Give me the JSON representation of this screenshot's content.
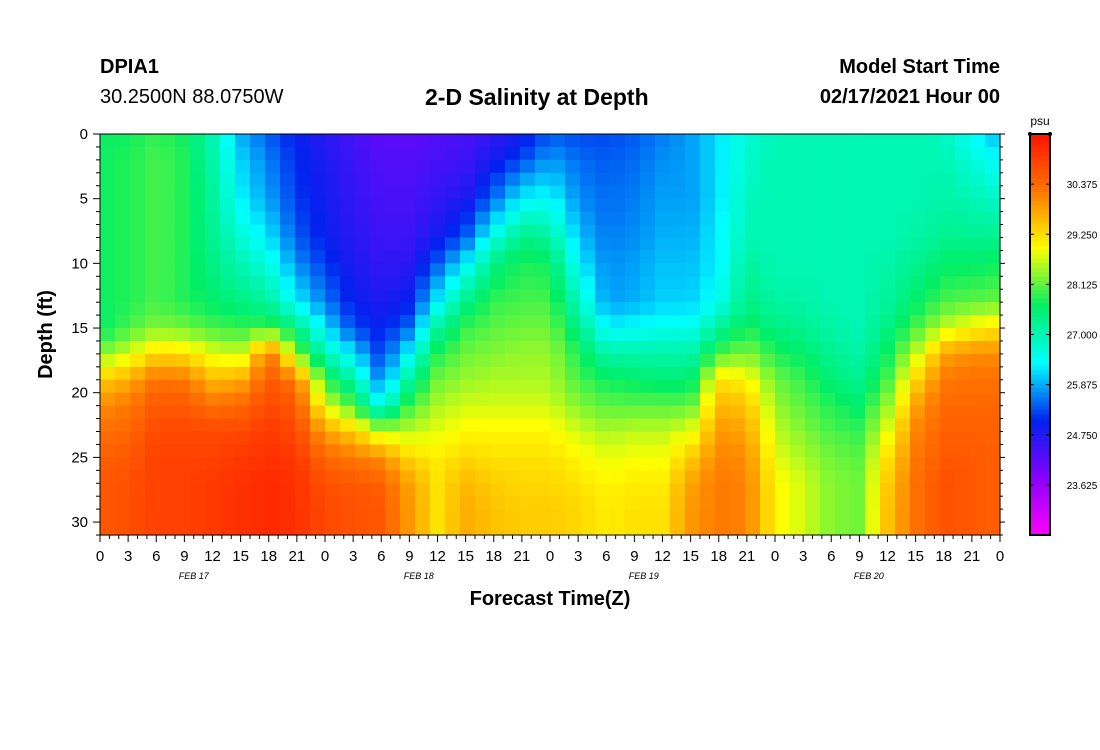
{
  "header": {
    "station": "DPIA1",
    "coords": "30.2500N 88.0750W",
    "title": "2-D Salinity at Depth",
    "model_start_label": "Model Start Time",
    "model_start_value": "02/17/2021 Hour 00"
  },
  "chart_data": {
    "type": "heatmap",
    "title": "2-D Salinity at Depth",
    "xlabel": "Forecast Time(Z)",
    "ylabel": "Depth (ft)",
    "x_hours": [
      0,
      3,
      6,
      9,
      12,
      15,
      18,
      21,
      24,
      27,
      30,
      33,
      36,
      39,
      42,
      45,
      48,
      51,
      54,
      57,
      60,
      63,
      66,
      69,
      72,
      75,
      78,
      81,
      84,
      87,
      90,
      93,
      96
    ],
    "x_tick_labels": [
      "0",
      "3",
      "6",
      "9",
      "12",
      "15",
      "18",
      "21",
      "0",
      "3",
      "6",
      "9",
      "12",
      "15",
      "18",
      "21",
      "0",
      "3",
      "6",
      "9",
      "12",
      "15",
      "18",
      "21",
      "0",
      "3",
      "6",
      "9",
      "12",
      "15",
      "18",
      "21",
      "0"
    ],
    "date_labels": [
      {
        "label": "FEB 17",
        "hour": 10
      },
      {
        "label": "FEB 18",
        "hour": 34
      },
      {
        "label": "FEB 19",
        "hour": 58
      },
      {
        "label": "FEB 20",
        "hour": 82
      }
    ],
    "xlim": [
      0,
      96
    ],
    "ylim": [
      0,
      31
    ],
    "y_inverted": true,
    "y_tick_labels": [
      "0",
      "5",
      "10",
      "15",
      "20",
      "25",
      "30"
    ],
    "colorbar": {
      "unit": "psu",
      "range": [
        22.5,
        31.5
      ],
      "tick_labels": [
        "30.375",
        "29.250",
        "28.125",
        "27.000",
        "25.875",
        "24.750",
        "23.625"
      ],
      "colors": [
        "#ff00ff",
        "#8800ff",
        "#0022ee",
        "#00ffff",
        "#00ee66",
        "#ffff00",
        "#ff7700",
        "#ff1100"
      ]
    },
    "depths_ft": [
      0,
      2,
      5,
      8,
      10,
      13,
      15,
      17,
      19,
      21,
      23,
      25,
      27,
      29,
      31
    ],
    "profiles": [
      {
        "hour": 0,
        "values": [
          27.7,
          27.7,
          27.7,
          27.7,
          27.7,
          27.7,
          27.6,
          28.3,
          29.4,
          30.0,
          30.3,
          30.5,
          30.6,
          30.6,
          30.6
        ]
      },
      {
        "hour": 3,
        "values": [
          27.7,
          27.8,
          27.8,
          27.8,
          27.8,
          27.8,
          28.0,
          28.7,
          29.7,
          30.2,
          30.4,
          30.6,
          30.7,
          30.7,
          30.7
        ]
      },
      {
        "hour": 6,
        "values": [
          27.9,
          28.0,
          28.0,
          28.0,
          28.0,
          28.0,
          28.3,
          29.3,
          30.3,
          30.6,
          30.8,
          30.9,
          30.9,
          30.9,
          30.9
        ]
      },
      {
        "hour": 9,
        "values": [
          27.7,
          27.8,
          27.8,
          27.8,
          27.8,
          27.8,
          28.2,
          29.2,
          30.2,
          30.6,
          30.8,
          30.9,
          30.9,
          30.9,
          30.9
        ]
      },
      {
        "hour": 12,
        "values": [
          27.0,
          27.1,
          27.2,
          27.3,
          27.4,
          27.6,
          28.0,
          28.8,
          29.6,
          30.3,
          30.8,
          30.9,
          31.0,
          31.0,
          31.0
        ]
      },
      {
        "hour": 15,
        "values": [
          25.9,
          26.1,
          26.3,
          26.7,
          27.0,
          27.4,
          27.9,
          28.6,
          29.7,
          30.4,
          30.8,
          31.0,
          31.1,
          31.1,
          31.1
        ]
      },
      {
        "hour": 18,
        "values": [
          25.4,
          25.6,
          25.8,
          26.2,
          26.6,
          27.2,
          28.0,
          30.3,
          30.6,
          30.8,
          31.0,
          31.1,
          31.2,
          31.2,
          31.2
        ]
      },
      {
        "hour": 21,
        "values": [
          25.0,
          25.1,
          25.2,
          25.4,
          25.7,
          26.3,
          27.4,
          28.3,
          30.2,
          30.6,
          30.8,
          31.0,
          31.1,
          31.1,
          31.1
        ]
      },
      {
        "hour": 24,
        "values": [
          24.7,
          24.8,
          24.9,
          25.0,
          25.2,
          25.6,
          26.2,
          27.0,
          27.9,
          28.8,
          29.8,
          30.4,
          30.7,
          30.8,
          30.8
        ]
      },
      {
        "hour": 27,
        "values": [
          24.4,
          24.5,
          24.6,
          24.7,
          24.8,
          25.0,
          25.3,
          26.2,
          27.1,
          28.0,
          29.4,
          30.2,
          30.6,
          30.7,
          30.7
        ]
      },
      {
        "hour": 30,
        "values": [
          24.2,
          24.3,
          24.4,
          24.5,
          24.6,
          24.8,
          25.0,
          25.2,
          25.6,
          26.5,
          28.6,
          30.0,
          30.5,
          30.6,
          30.6
        ]
      },
      {
        "hour": 33,
        "values": [
          24.2,
          24.3,
          24.4,
          24.5,
          24.7,
          25.0,
          25.5,
          26.4,
          27.2,
          28.0,
          28.6,
          29.3,
          29.8,
          29.9,
          29.9
        ]
      },
      {
        "hour": 36,
        "values": [
          24.3,
          24.4,
          24.6,
          24.9,
          25.4,
          26.3,
          27.2,
          27.8,
          28.2,
          28.5,
          28.8,
          29.1,
          29.2,
          29.2,
          29.2
        ]
      },
      {
        "hour": 39,
        "values": [
          24.4,
          24.5,
          24.8,
          25.4,
          26.3,
          27.4,
          27.9,
          28.2,
          28.4,
          28.7,
          29.0,
          29.3,
          29.6,
          29.7,
          29.7
        ]
      },
      {
        "hour": 42,
        "values": [
          24.6,
          24.9,
          25.5,
          26.6,
          27.4,
          27.9,
          28.1,
          28.3,
          28.5,
          28.7,
          29.0,
          29.2,
          29.4,
          29.5,
          29.5
        ]
      },
      {
        "hour": 45,
        "values": [
          24.9,
          25.3,
          26.3,
          27.4,
          27.8,
          28.0,
          28.2,
          28.4,
          28.5,
          28.7,
          29.0,
          29.2,
          29.3,
          29.4,
          29.4
        ]
      },
      {
        "hour": 48,
        "values": [
          25.4,
          25.8,
          26.4,
          27.2,
          27.7,
          28.0,
          28.2,
          28.4,
          28.5,
          28.7,
          29.0,
          29.2,
          29.3,
          29.4,
          29.4
        ]
      },
      {
        "hour": 51,
        "values": [
          25.3,
          25.5,
          25.7,
          26.0,
          26.3,
          26.9,
          27.4,
          27.8,
          28.0,
          28.3,
          28.7,
          29.0,
          29.2,
          29.3,
          29.3
        ]
      },
      {
        "hour": 54,
        "values": [
          25.3,
          25.4,
          25.5,
          25.6,
          25.7,
          25.8,
          26.3,
          27.1,
          27.7,
          28.1,
          28.5,
          28.8,
          29.0,
          29.1,
          29.1
        ]
      },
      {
        "hour": 57,
        "values": [
          25.4,
          25.5,
          25.6,
          25.7,
          25.8,
          25.9,
          26.4,
          27.1,
          27.6,
          28.1,
          28.6,
          28.9,
          29.1,
          29.2,
          29.2
        ]
      },
      {
        "hour": 60,
        "values": [
          25.6,
          25.7,
          25.8,
          25.9,
          26.0,
          26.1,
          26.5,
          27.1,
          27.5,
          28.1,
          28.6,
          28.9,
          29.1,
          29.2,
          29.2
        ]
      },
      {
        "hour": 63,
        "values": [
          25.8,
          25.8,
          25.8,
          25.9,
          26.0,
          26.1,
          26.5,
          27.1,
          27.5,
          28.1,
          28.8,
          29.4,
          29.8,
          29.9,
          29.9
        ]
      },
      {
        "hour": 66,
        "values": [
          26.2,
          26.2,
          26.2,
          26.3,
          26.3,
          26.5,
          27.2,
          28.0,
          29.2,
          29.6,
          29.9,
          30.1,
          30.2,
          30.2,
          30.2
        ]
      },
      {
        "hour": 69,
        "values": [
          26.7,
          26.8,
          26.9,
          27.0,
          27.2,
          27.4,
          27.8,
          28.3,
          29.0,
          29.5,
          29.8,
          30.0,
          30.1,
          30.1,
          30.1
        ]
      },
      {
        "hour": 72,
        "values": [
          27.0,
          27.0,
          27.0,
          27.0,
          27.0,
          27.1,
          27.4,
          27.8,
          28.2,
          28.4,
          28.6,
          28.8,
          29.0,
          29.0,
          29.0
        ]
      },
      {
        "hour": 75,
        "values": [
          27.0,
          27.0,
          27.0,
          27.0,
          27.0,
          27.1,
          27.3,
          27.6,
          27.9,
          28.1,
          28.3,
          28.5,
          28.7,
          28.7,
          28.7
        ]
      },
      {
        "hour": 78,
        "values": [
          27.0,
          27.0,
          27.0,
          27.0,
          27.0,
          27.0,
          27.1,
          27.3,
          27.5,
          27.8,
          28.0,
          28.2,
          28.3,
          28.3,
          28.3
        ]
      },
      {
        "hour": 81,
        "values": [
          27.0,
          27.0,
          27.0,
          27.0,
          27.0,
          27.0,
          27.0,
          27.1,
          27.3,
          27.6,
          27.9,
          28.1,
          28.2,
          28.2,
          28.2
        ]
      },
      {
        "hour": 84,
        "values": [
          27.0,
          27.0,
          27.0,
          27.0,
          27.1,
          27.2,
          27.4,
          27.7,
          28.0,
          28.4,
          28.8,
          29.2,
          29.4,
          29.5,
          29.5
        ]
      },
      {
        "hour": 87,
        "values": [
          27.0,
          27.0,
          27.0,
          27.1,
          27.3,
          27.6,
          28.0,
          28.6,
          29.3,
          29.8,
          30.1,
          30.2,
          30.3,
          30.3,
          30.3
        ]
      },
      {
        "hour": 90,
        "values": [
          26.9,
          27.0,
          27.1,
          27.3,
          27.6,
          28.0,
          28.6,
          29.8,
          30.2,
          30.4,
          30.5,
          30.6,
          30.7,
          30.7,
          30.7
        ]
      },
      {
        "hour": 93,
        "values": [
          26.4,
          26.7,
          27.0,
          27.3,
          27.6,
          28.1,
          29.0,
          30.0,
          30.3,
          30.4,
          30.5,
          30.6,
          30.6,
          30.6,
          30.6
        ]
      },
      {
        "hour": 96,
        "values": [
          25.9,
          26.3,
          26.8,
          27.3,
          27.7,
          28.2,
          29.2,
          30.0,
          30.3,
          30.4,
          30.5,
          30.5,
          30.5,
          30.5,
          30.5
        ]
      }
    ]
  }
}
